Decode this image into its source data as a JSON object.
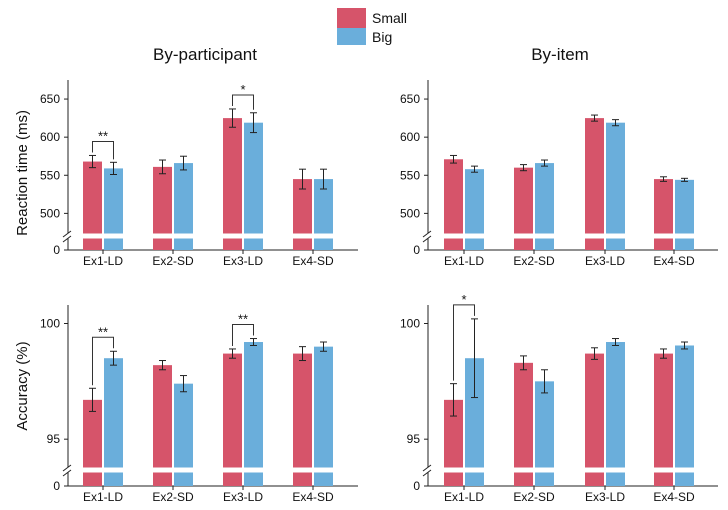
{
  "legend": [
    {
      "label": "Small",
      "color": "#d6546a"
    },
    {
      "label": "Big",
      "color": "#6aaedb"
    }
  ],
  "columns": {
    "left_title": "By-participant",
    "right_title": "By-item"
  },
  "row_labels": {
    "rt": "Reaction time (ms)",
    "acc": "Accuracy (%)"
  },
  "chart_data": [
    {
      "id": "rt-participant",
      "type": "bar",
      "title": "By-participant",
      "ylabel": "Reaction time (ms)",
      "categories": [
        "Ex1-LD",
        "Ex2-SD",
        "Ex3-LD",
        "Ex4-SD"
      ],
      "ylim": [
        490,
        675
      ],
      "axis_break": true,
      "baseline_tick": "0",
      "yticks": [
        500,
        550,
        600,
        650
      ],
      "series": [
        {
          "name": "Small",
          "values": [
            568,
            561,
            625,
            545
          ],
          "errors": [
            8,
            9,
            12,
            13
          ]
        },
        {
          "name": "Big",
          "values": [
            559,
            566,
            619,
            545
          ],
          "errors": [
            8,
            9,
            13,
            13
          ]
        }
      ],
      "significance": [
        {
          "category": 0,
          "label": "**"
        },
        {
          "category": 2,
          "label": "*"
        }
      ]
    },
    {
      "id": "rt-item",
      "type": "bar",
      "title": "By-item",
      "ylabel": "",
      "categories": [
        "Ex1-LD",
        "Ex2-SD",
        "Ex3-LD",
        "Ex4-SD"
      ],
      "ylim": [
        490,
        675
      ],
      "axis_break": true,
      "baseline_tick": "0",
      "yticks": [
        500,
        550,
        600,
        650
      ],
      "series": [
        {
          "name": "Small",
          "values": [
            571,
            560,
            625,
            545
          ],
          "errors": [
            5,
            4,
            4,
            3
          ]
        },
        {
          "name": "Big",
          "values": [
            558,
            566,
            619,
            544
          ],
          "errors": [
            4,
            4,
            4,
            2
          ]
        }
      ],
      "significance": []
    },
    {
      "id": "acc-participant",
      "type": "bar",
      "title": "",
      "ylabel": "Accuracy (%)",
      "categories": [
        "Ex1-LD",
        "Ex2-SD",
        "Ex3-LD",
        "Ex4-SD"
      ],
      "ylim": [
        94.1,
        100.8
      ],
      "axis_break": true,
      "baseline_tick": "0",
      "yticks": [
        95,
        100
      ],
      "series": [
        {
          "name": "Small",
          "values": [
            96.7,
            98.2,
            98.7,
            98.7
          ],
          "errors": [
            0.5,
            0.2,
            0.2,
            0.3
          ]
        },
        {
          "name": "Big",
          "values": [
            98.5,
            97.4,
            99.2,
            99.0
          ],
          "errors": [
            0.3,
            0.35,
            0.15,
            0.2
          ]
        }
      ],
      "significance": [
        {
          "category": 0,
          "label": "**"
        },
        {
          "category": 2,
          "label": "**"
        }
      ]
    },
    {
      "id": "acc-item",
      "type": "bar",
      "title": "",
      "ylabel": "",
      "categories": [
        "Ex1-LD",
        "Ex2-SD",
        "Ex3-LD",
        "Ex4-SD"
      ],
      "ylim": [
        94.1,
        100.8
      ],
      "axis_break": true,
      "baseline_tick": "0",
      "yticks": [
        95,
        100
      ],
      "series": [
        {
          "name": "Small",
          "values": [
            96.7,
            98.3,
            98.7,
            98.7
          ],
          "errors": [
            0.7,
            0.3,
            0.25,
            0.2
          ]
        },
        {
          "name": "Big",
          "values": [
            98.5,
            97.5,
            99.2,
            99.05
          ],
          "errors": [
            1.7,
            0.5,
            0.15,
            0.15
          ]
        }
      ],
      "significance": [
        {
          "category": 0,
          "label": "*"
        }
      ]
    }
  ]
}
